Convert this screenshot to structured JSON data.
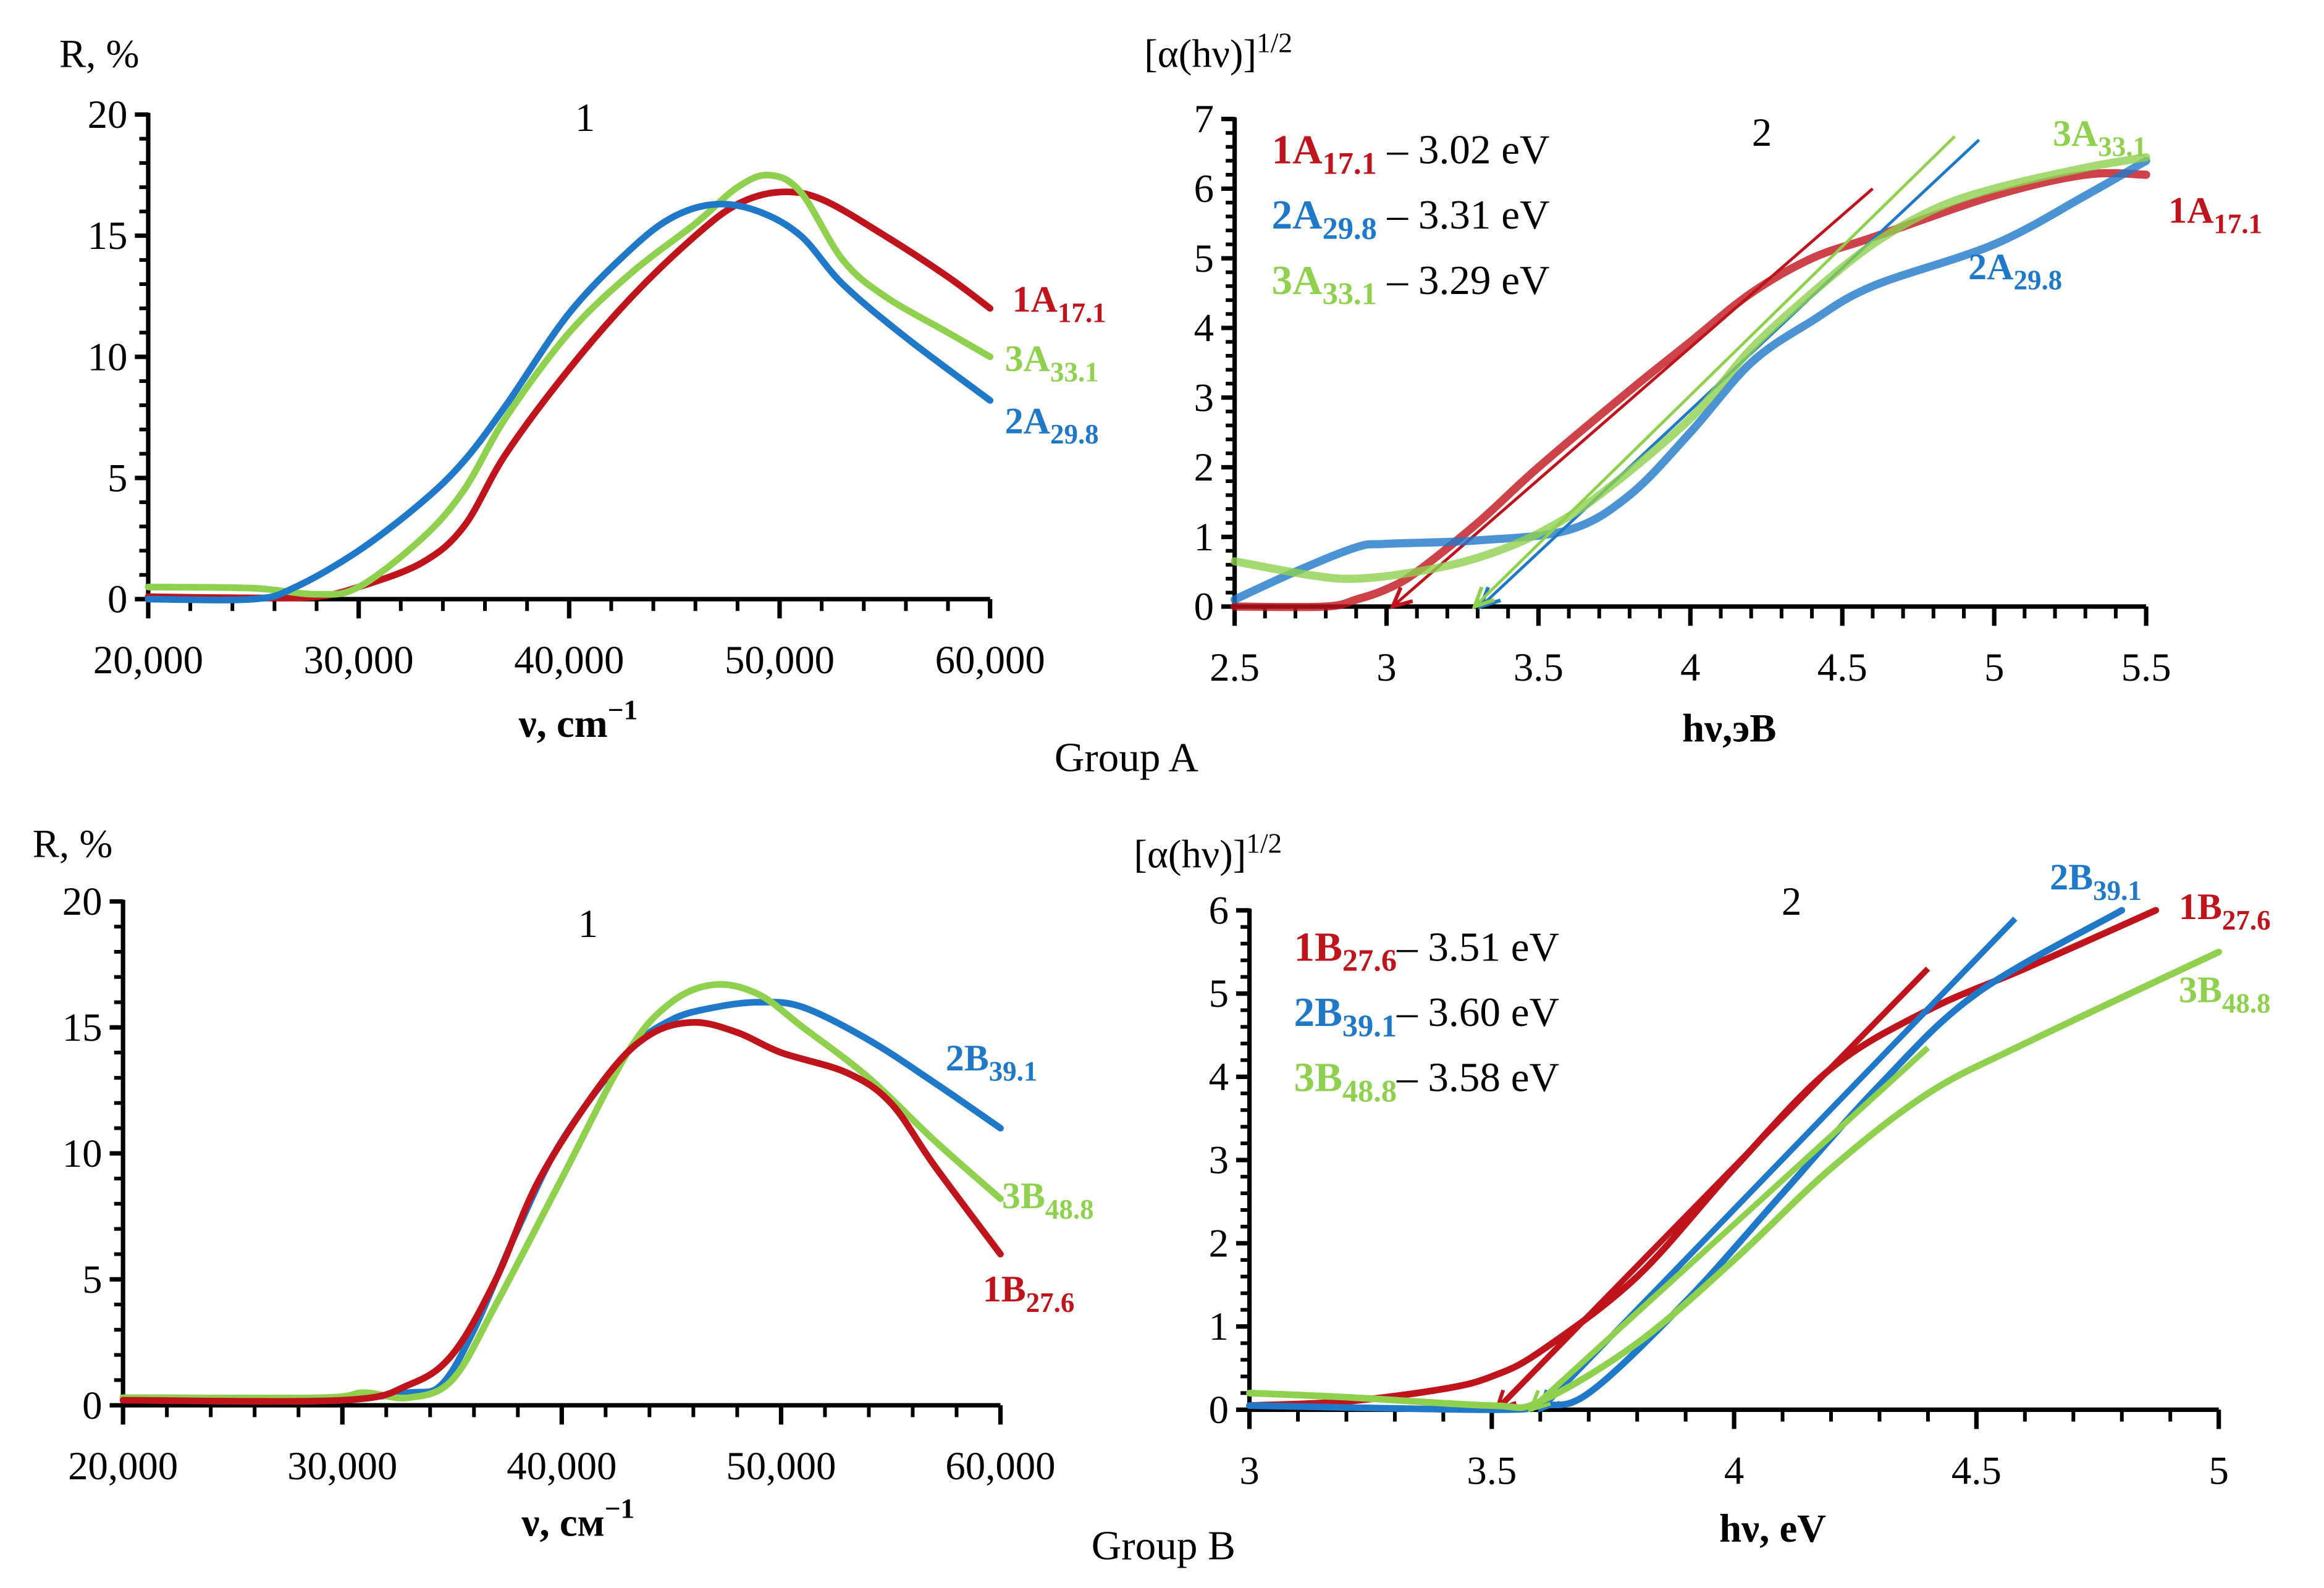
{
  "colors": {
    "red": "#c0141c",
    "green": "#8fd14f",
    "blue": "#1f78c8",
    "axis": "#000000"
  },
  "group_labels": [
    "Group A",
    "Group B"
  ],
  "chart_data": [
    {
      "id": "A1",
      "type": "line",
      "panel_number": "1",
      "group": "Group A",
      "ylabel": "R, %",
      "xlabel": "ν, cm",
      "xlabel_sup": "−1",
      "xlim": [
        20000,
        60000
      ],
      "ylim": [
        0,
        20
      ],
      "xticks": [
        20000,
        30000,
        40000,
        50000,
        60000
      ],
      "xtick_labels": [
        "20,000",
        "30,000",
        "40,000",
        "50,000",
        "60,000"
      ],
      "yticks": [
        0,
        5,
        10,
        15,
        20
      ],
      "yminor": 1,
      "xminor": 2000,
      "grid": false,
      "series": [
        {
          "name": "1A",
          "sub": "17.1",
          "color": "red",
          "x": [
            20000,
            25000,
            28000,
            30000,
            33000,
            35000,
            37000,
            40000,
            43000,
            46000,
            48000,
            50000,
            52000,
            55000,
            58000,
            60000
          ],
          "y": [
            0.1,
            0.05,
            0.1,
            0.5,
            1.5,
            3,
            6,
            9.5,
            12.5,
            15,
            16.3,
            16.8,
            16.5,
            15,
            13.3,
            12
          ]
        },
        {
          "name": "3A",
          "sub": "33.1",
          "color": "green",
          "x": [
            20000,
            25000,
            28000,
            30000,
            33000,
            35000,
            37000,
            40000,
            43000,
            46000,
            48000,
            49500,
            51000,
            53000,
            55000,
            58000,
            60000
          ],
          "y": [
            0.5,
            0.45,
            0.2,
            0.5,
            2.5,
            4.5,
            7.5,
            11,
            13.5,
            15.5,
            17,
            17.5,
            16.8,
            14,
            12.5,
            11,
            10
          ]
        },
        {
          "name": "2A",
          "sub": "29.8",
          "color": "blue",
          "x": [
            20000,
            25000,
            27000,
            30000,
            33000,
            35000,
            37000,
            40000,
            43000,
            45000,
            47000,
            49000,
            51000,
            53000,
            56000,
            60000
          ],
          "y": [
            0,
            0,
            0.5,
            2,
            4,
            5.7,
            8,
            11.8,
            14.5,
            15.8,
            16.3,
            16,
            15,
            13,
            10.8,
            8.2
          ]
        }
      ]
    },
    {
      "id": "A2",
      "type": "line",
      "panel_number": "2",
      "group": "Group A",
      "ylabel": "[α(hν)]",
      "ylabel_sup": "1/2",
      "xlabel": "hν,эВ",
      "xlim": [
        2.5,
        5.5
      ],
      "ylim": [
        0,
        7
      ],
      "xticks": [
        2.5,
        3,
        3.5,
        4,
        4.5,
        5,
        5.5
      ],
      "xtick_labels": [
        "2.5",
        "3",
        "3.5",
        "4",
        "4.5",
        "5",
        "5.5"
      ],
      "yticks": [
        0,
        1,
        2,
        3,
        4,
        5,
        6,
        7
      ],
      "yminor": 0.2,
      "xminor": 0.1,
      "grid": false,
      "legend": [
        {
          "name": "1A",
          "sub": "17.1",
          "text": " – 3.02 eV",
          "color": "red"
        },
        {
          "name": "2A",
          "sub": "29.8",
          "text": " – 3.31 eV",
          "color": "blue"
        },
        {
          "name": "3A",
          "sub": "33.1",
          "text": " – 3.29 eV",
          "color": "green"
        }
      ],
      "series": [
        {
          "name": "1A",
          "sub": "17.1",
          "color": "red",
          "band_gap_eV": 3.02,
          "x": [
            2.5,
            2.8,
            2.9,
            3,
            3.1,
            3.3,
            3.5,
            3.8,
            4,
            4.2,
            4.4,
            4.6,
            5,
            5.3,
            5.5
          ],
          "y": [
            0,
            0,
            0.1,
            0.25,
            0.5,
            1.2,
            2,
            3.1,
            3.8,
            4.5,
            5,
            5.3,
            5.9,
            6.2,
            6.2
          ],
          "tangent": {
            "x": [
              3.02,
              4.6
            ],
            "y": [
              0,
              6.0
            ]
          }
        },
        {
          "name": "2A",
          "sub": "29.8",
          "color": "blue",
          "band_gap_eV": 3.31,
          "x": [
            2.5,
            2.7,
            2.9,
            3,
            3.3,
            3.6,
            3.8,
            4,
            4.2,
            4.4,
            4.6,
            5,
            5.3,
            5.5
          ],
          "y": [
            0.1,
            0.5,
            0.85,
            0.9,
            0.95,
            1.1,
            1.6,
            2.5,
            3.5,
            4.1,
            4.6,
            5.2,
            5.9,
            6.4
          ],
          "tangent": {
            "x": [
              3.31,
              4.95
            ],
            "y": [
              0,
              6.7
            ]
          }
        },
        {
          "name": "3A",
          "sub": "33.1",
          "color": "green",
          "band_gap_eV": 3.29,
          "x": [
            2.5,
            2.75,
            2.9,
            3.1,
            3.3,
            3.5,
            3.7,
            4,
            4.2,
            4.4,
            4.6,
            4.8,
            5,
            5.3,
            5.5
          ],
          "y": [
            0.65,
            0.45,
            0.4,
            0.5,
            0.7,
            1.05,
            1.6,
            2.7,
            3.7,
            4.5,
            5.2,
            5.7,
            6,
            6.3,
            6.45
          ],
          "tangent": {
            "x": [
              3.29,
              4.87
            ],
            "y": [
              0,
              6.75
            ]
          }
        }
      ]
    },
    {
      "id": "B1",
      "type": "line",
      "panel_number": "1",
      "group": "Group B",
      "ylabel": "R, %",
      "xlabel": "ν, см",
      "xlabel_sup": "−1",
      "xlim": [
        20000,
        60000
      ],
      "ylim": [
        0,
        20
      ],
      "xticks": [
        20000,
        30000,
        40000,
        50000,
        60000
      ],
      "xtick_labels": [
        "20,000",
        "30,000",
        "40,000",
        "50,000",
        "60,000"
      ],
      "yticks": [
        0,
        5,
        10,
        15,
        20
      ],
      "yminor": 1,
      "xminor": 2000,
      "grid": false,
      "series": [
        {
          "name": "2B",
          "sub": "39.1",
          "color": "blue",
          "x": [
            20000,
            30000,
            33000,
            34500,
            36000,
            38000,
            40000,
            43000,
            45000,
            47000,
            49000,
            51000,
            54000,
            57000,
            60000
          ],
          "y": [
            0.3,
            0.3,
            0.5,
            0.8,
            3,
            7,
            10.5,
            14,
            15.3,
            15.8,
            16,
            15.8,
            14.5,
            12.8,
            11
          ]
        },
        {
          "name": "3B",
          "sub": "48.8",
          "color": "green",
          "x": [
            20000,
            29000,
            31000,
            33000,
            35000,
            37000,
            40000,
            43000,
            45000,
            47000,
            49000,
            51000,
            54000,
            57000,
            60000
          ],
          "y": [
            0.3,
            0.3,
            0.5,
            0.3,
            1,
            4,
            9,
            14,
            16,
            16.7,
            16.3,
            15,
            13,
            10.5,
            8.2
          ]
        },
        {
          "name": "1B",
          "sub": "27.6",
          "color": "red",
          "x": [
            20000,
            30000,
            33000,
            35000,
            37000,
            39000,
            42000,
            44000,
            46000,
            48000,
            50000,
            53000,
            55000,
            57000,
            60000
          ],
          "y": [
            0.2,
            0.2,
            0.8,
            2,
            5,
            9,
            13,
            14.7,
            15.2,
            14.8,
            14,
            13.2,
            12,
            9.5,
            6
          ]
        }
      ]
    },
    {
      "id": "B2",
      "type": "line",
      "panel_number": "2",
      "group": "Group B",
      "ylabel": "[α(hν)]",
      "ylabel_sup": "1/2",
      "xlabel": "hν, eV",
      "xlim": [
        3,
        5
      ],
      "ylim": [
        0,
        6
      ],
      "xticks": [
        3,
        3.5,
        4,
        4.5,
        5
      ],
      "xtick_labels": [
        "3",
        "3.5",
        "4",
        "4.5",
        "5"
      ],
      "yticks": [
        0,
        1,
        2,
        3,
        4,
        5,
        6
      ],
      "yminor": 0.2,
      "xminor": 0.1,
      "grid": false,
      "legend": [
        {
          "name": "1B",
          "sub": "27.6",
          "text": "– 3.51 eV",
          "color": "red"
        },
        {
          "name": "2B",
          "sub": "39.1",
          "text": "– 3.60 eV",
          "color": "blue"
        },
        {
          "name": "3B",
          "sub": "48.8",
          "text": "– 3.58 eV",
          "color": "green"
        }
      ],
      "series": [
        {
          "name": "1B",
          "sub": "27.6",
          "color": "red",
          "band_gap_eV": 3.51,
          "x": [
            3,
            3.2,
            3.4,
            3.5,
            3.6,
            3.8,
            4,
            4.2,
            4.4,
            4.6,
            4.87
          ],
          "y": [
            0.05,
            0.1,
            0.25,
            0.4,
            0.7,
            1.6,
            2.9,
            4.1,
            4.8,
            5.3,
            6
          ],
          "tangent": {
            "x": [
              3.51,
              4.4
            ],
            "y": [
              0,
              5.3
            ]
          }
        },
        {
          "name": "2B",
          "sub": "39.1",
          "color": "blue",
          "band_gap_eV": 3.6,
          "x": [
            3,
            3.5,
            3.6,
            3.7,
            3.9,
            4.1,
            4.3,
            4.5,
            4.8
          ],
          "y": [
            0.05,
            0,
            0.05,
            0.2,
            1.3,
            2.6,
            3.9,
            5,
            6
          ],
          "tangent": {
            "x": [
              3.6,
              4.58
            ],
            "y": [
              0,
              5.9
            ]
          }
        },
        {
          "name": "3B",
          "sub": "48.8",
          "color": "green",
          "band_gap_eV": 3.58,
          "x": [
            3,
            3.2,
            3.5,
            3.6,
            3.8,
            4,
            4.2,
            4.4,
            4.6,
            5
          ],
          "y": [
            0.2,
            0.15,
            0.05,
            0.1,
            0.8,
            1.8,
            2.9,
            3.8,
            4.4,
            5.5
          ],
          "tangent": {
            "x": [
              3.58,
              4.4
            ],
            "y": [
              0,
              4.35
            ]
          }
        }
      ]
    }
  ]
}
